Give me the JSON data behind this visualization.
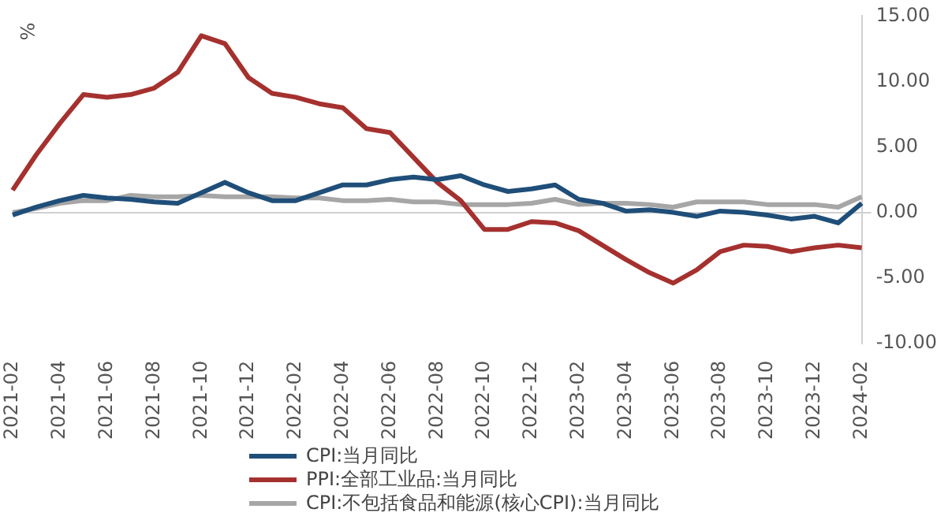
{
  "chart_data": {
    "type": "line",
    "ylabel": "%",
    "categories": [
      "2021-02",
      null,
      "2021-04",
      null,
      "2021-06",
      null,
      "2021-08",
      null,
      "2021-10",
      null,
      "2021-12",
      null,
      "2022-02",
      null,
      "2022-04",
      null,
      "2022-06",
      null,
      "2022-08",
      null,
      "2022-10",
      null,
      "2022-12",
      null,
      "2023-02",
      null,
      "2023-04",
      null,
      "2023-06",
      null,
      "2023-08",
      null,
      "2023-10",
      null,
      "2023-12",
      null,
      "2024-02"
    ],
    "series": [
      {
        "name": "CPI:当月同比",
        "color": "#1f4e79",
        "values": [
          -0.2,
          0.4,
          0.9,
          1.3,
          1.1,
          1.0,
          0.8,
          0.7,
          1.5,
          2.3,
          1.5,
          0.9,
          0.9,
          1.5,
          2.1,
          2.1,
          2.5,
          2.7,
          2.5,
          2.8,
          2.1,
          1.6,
          1.8,
          2.1,
          1.0,
          0.7,
          0.1,
          0.2,
          0.0,
          -0.3,
          0.1,
          0.0,
          -0.2,
          -0.5,
          -0.3,
          -0.8,
          0.7
        ]
      },
      {
        "name": "PPI:全部工业品:当月同比",
        "color": "#a5312f",
        "values": [
          1.7,
          4.4,
          6.8,
          9.0,
          8.8,
          9.0,
          9.5,
          10.7,
          13.5,
          12.9,
          10.3,
          9.1,
          8.8,
          8.3,
          8.0,
          6.4,
          6.1,
          4.2,
          2.3,
          0.9,
          -1.3,
          -1.3,
          -0.7,
          -0.8,
          -1.4,
          -2.5,
          -3.6,
          -4.6,
          -5.4,
          -4.4,
          -3.0,
          -2.5,
          -2.6,
          -3.0,
          -2.7,
          -2.5,
          -2.7
        ]
      },
      {
        "name": "CPI:不包括食品和能源(核心CPI):当月同比",
        "color": "#a6a6a6",
        "values": [
          0.0,
          0.3,
          0.7,
          0.9,
          0.9,
          1.3,
          1.2,
          1.2,
          1.3,
          1.2,
          1.2,
          1.2,
          1.1,
          1.1,
          0.9,
          0.9,
          1.0,
          0.8,
          0.8,
          0.6,
          0.6,
          0.6,
          0.7,
          1.0,
          0.6,
          0.7,
          0.7,
          0.6,
          0.4,
          0.8,
          0.8,
          0.8,
          0.6,
          0.6,
          0.6,
          0.4,
          1.2
        ]
      }
    ],
    "ylim": [
      -10,
      15
    ],
    "yticks": [
      {
        "value": -10,
        "label": "-10.00"
      },
      {
        "value": -5,
        "label": "-5.00"
      },
      {
        "value": 0,
        "label": "0.00"
      },
      {
        "value": 5,
        "label": "5.00"
      },
      {
        "value": 10,
        "label": "10.00"
      },
      {
        "value": 15,
        "label": "15.00"
      }
    ],
    "legend": "bottom",
    "marker": "none",
    "line_style": "solid"
  }
}
